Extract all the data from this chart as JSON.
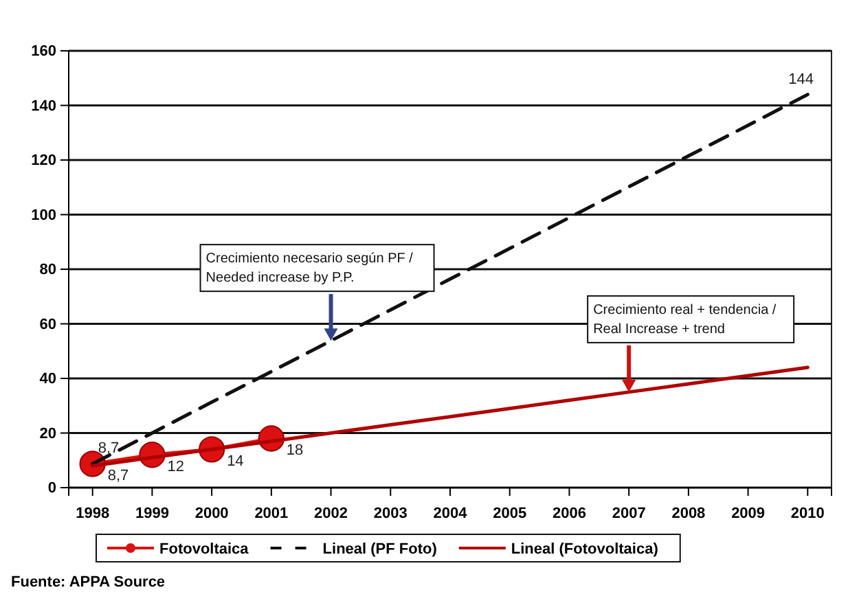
{
  "chart_data": {
    "type": "line",
    "categories": [
      "1998",
      "1999",
      "2000",
      "2001",
      "2002",
      "2003",
      "2004",
      "2005",
      "2006",
      "2007",
      "2008",
      "2009",
      "2010"
    ],
    "series": [
      {
        "name": "Fotovoltaica",
        "color": "#dd1111",
        "marker": "circle",
        "line_style": "solid",
        "values": [
          8.7,
          12,
          14,
          18,
          null,
          null,
          null,
          null,
          null,
          null,
          null,
          null,
          null
        ],
        "value_labels": [
          "8,7",
          "12",
          "14",
          "18",
          null,
          null,
          null,
          null,
          null,
          null,
          null,
          null,
          null
        ]
      },
      {
        "name": "Lineal (PF Foto)",
        "color": "#111111",
        "marker": "none",
        "line_style": "dashed",
        "values": [
          8.7,
          20,
          31.3,
          42.5,
          53.8,
          65.1,
          76.4,
          87.6,
          98.9,
          110.2,
          121.5,
          132.7,
          144
        ],
        "value_labels": [
          "8,7",
          null,
          null,
          null,
          null,
          null,
          null,
          null,
          null,
          null,
          null,
          null,
          "144"
        ]
      },
      {
        "name": "Lineal (Fotovoltaica)",
        "color": "#b00000",
        "marker": "none",
        "line_style": "solid",
        "values": [
          8,
          11,
          14,
          17,
          20,
          23,
          26,
          29,
          32,
          35,
          38,
          41,
          44
        ]
      }
    ],
    "ylim": [
      0,
      160
    ],
    "yticks": [
      0,
      20,
      40,
      60,
      80,
      100,
      120,
      140,
      160
    ],
    "grid": "y",
    "legend": "bottom",
    "annotations": [
      {
        "text": "Crecimiento necesario según PF / Needed increase by P.P.",
        "x": "2002",
        "y": 53.8
      },
      {
        "text": "Crecimiento real + tendencia / Real Increase + trend",
        "x": "2007",
        "y": 35
      },
      "Fuente: APPA Source"
    ]
  }
}
